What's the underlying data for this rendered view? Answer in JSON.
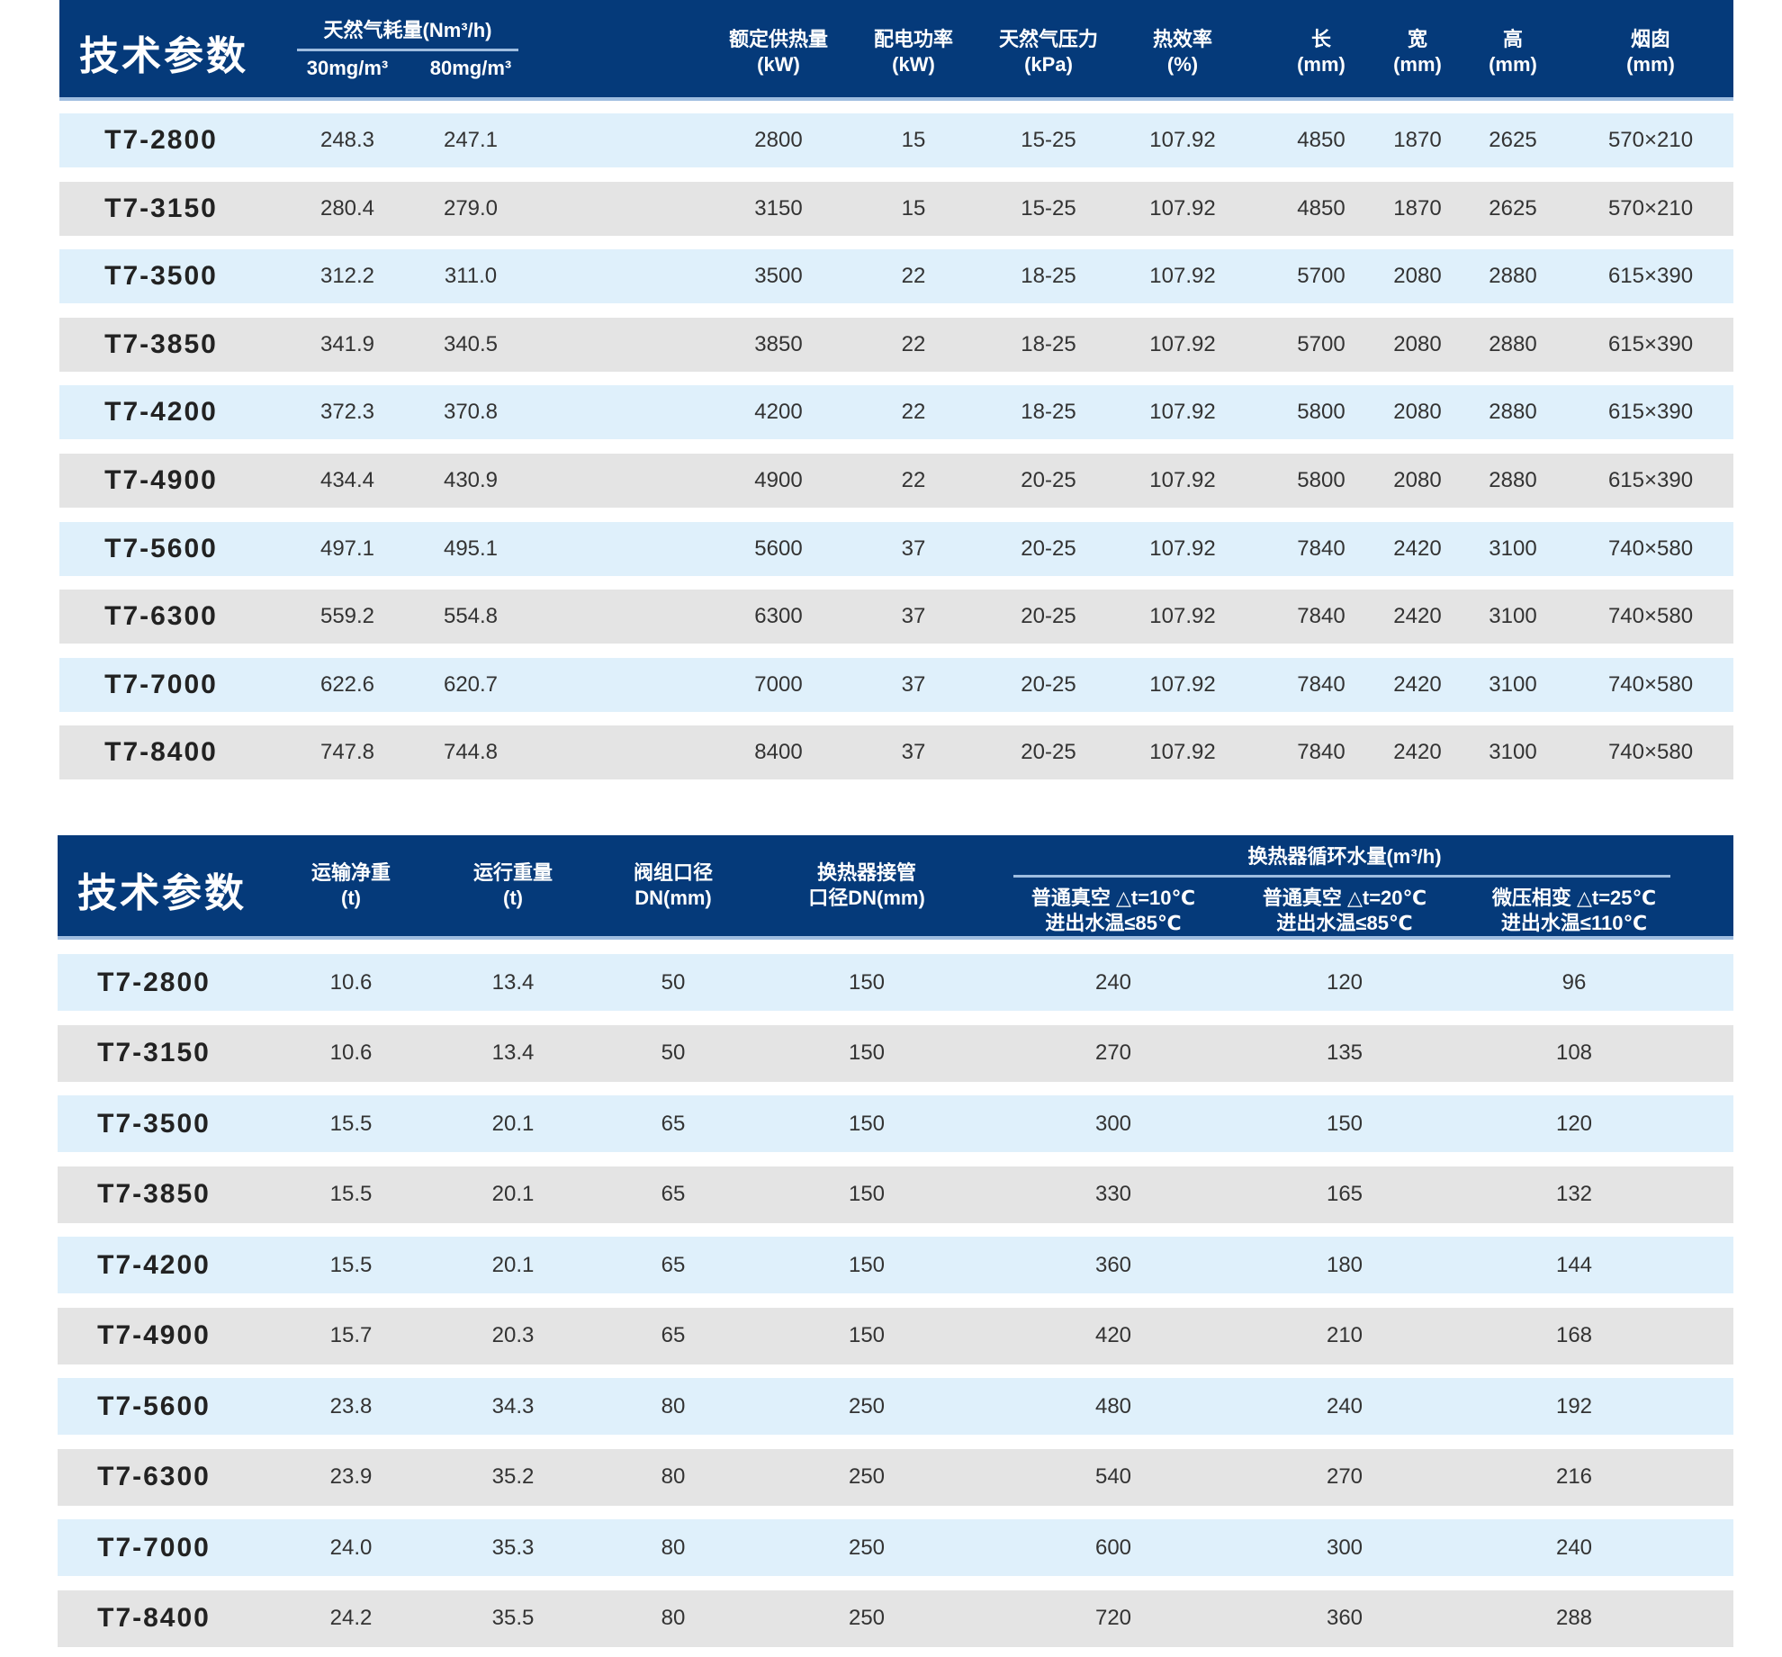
{
  "table1": {
    "title": "技术参数",
    "gas_group": "天然气耗量(Nm³/h)",
    "headers": [
      "30mg/m³",
      "80mg/m³",
      "额定供热量\n(kW)",
      "配电功率\n(kW)",
      "天然气压力\n(kPa)",
      "热效率\n(%)",
      "长\n(mm)",
      "宽\n(mm)",
      "高\n(mm)",
      "烟囱\n(mm)"
    ],
    "rows": [
      [
        "T7-2800",
        "248.3",
        "247.1",
        "2800",
        "15",
        "15-25",
        "107.92",
        "4850",
        "1870",
        "2625",
        "570×210"
      ],
      [
        "T7-3150",
        "280.4",
        "279.0",
        "3150",
        "15",
        "15-25",
        "107.92",
        "4850",
        "1870",
        "2625",
        "570×210"
      ],
      [
        "T7-3500",
        "312.2",
        "311.0",
        "3500",
        "22",
        "18-25",
        "107.92",
        "5700",
        "2080",
        "2880",
        "615×390"
      ],
      [
        "T7-3850",
        "341.9",
        "340.5",
        "3850",
        "22",
        "18-25",
        "107.92",
        "5700",
        "2080",
        "2880",
        "615×390"
      ],
      [
        "T7-4200",
        "372.3",
        "370.8",
        "4200",
        "22",
        "18-25",
        "107.92",
        "5800",
        "2080",
        "2880",
        "615×390"
      ],
      [
        "T7-4900",
        "434.4",
        "430.9",
        "4900",
        "22",
        "20-25",
        "107.92",
        "5800",
        "2080",
        "2880",
        "615×390"
      ],
      [
        "T7-5600",
        "497.1",
        "495.1",
        "5600",
        "37",
        "20-25",
        "107.92",
        "7840",
        "2420",
        "3100",
        "740×580"
      ],
      [
        "T7-6300",
        "559.2",
        "554.8",
        "6300",
        "37",
        "20-25",
        "107.92",
        "7840",
        "2420",
        "3100",
        "740×580"
      ],
      [
        "T7-7000",
        "622.6",
        "620.7",
        "7000",
        "37",
        "20-25",
        "107.92",
        "7840",
        "2420",
        "3100",
        "740×580"
      ],
      [
        "T7-8400",
        "747.8",
        "744.8",
        "8400",
        "37",
        "20-25",
        "107.92",
        "7840",
        "2420",
        "3100",
        "740×580"
      ]
    ]
  },
  "table2": {
    "title": "技术参数",
    "water_group": "换热器循环水量(m³/h)",
    "headers": [
      "运输净重\n(t)",
      "运行重量\n(t)",
      "阀组口径\nDN(mm)",
      "换热器接管\n口径DN(mm)",
      "普通真空 △t=10℃\n进出水温≤85℃",
      "普通真空 △t=20℃\n进出水温≤85℃",
      "微压相变 △t=25℃\n进出水温≤110℃"
    ],
    "rows": [
      [
        "T7-2800",
        "10.6",
        "13.4",
        "50",
        "150",
        "240",
        "120",
        "96"
      ],
      [
        "T7-3150",
        "10.6",
        "13.4",
        "50",
        "150",
        "270",
        "135",
        "108"
      ],
      [
        "T7-3500",
        "15.5",
        "20.1",
        "65",
        "150",
        "300",
        "150",
        "120"
      ],
      [
        "T7-3850",
        "15.5",
        "20.1",
        "65",
        "150",
        "330",
        "165",
        "132"
      ],
      [
        "T7-4200",
        "15.5",
        "20.1",
        "65",
        "150",
        "360",
        "180",
        "144"
      ],
      [
        "T7-4900",
        "15.7",
        "20.3",
        "65",
        "150",
        "420",
        "210",
        "168"
      ],
      [
        "T7-5600",
        "23.8",
        "34.3",
        "80",
        "250",
        "480",
        "240",
        "192"
      ],
      [
        "T7-6300",
        "23.9",
        "35.2",
        "80",
        "250",
        "540",
        "270",
        "216"
      ],
      [
        "T7-7000",
        "24.0",
        "35.3",
        "80",
        "250",
        "600",
        "300",
        "240"
      ],
      [
        "T7-8400",
        "24.2",
        "35.5",
        "80",
        "250",
        "720",
        "360",
        "288"
      ]
    ]
  },
  "colors": {
    "header": "#053a7a",
    "row_blue": "#dff0fb",
    "row_gray": "#e4e4e4"
  }
}
